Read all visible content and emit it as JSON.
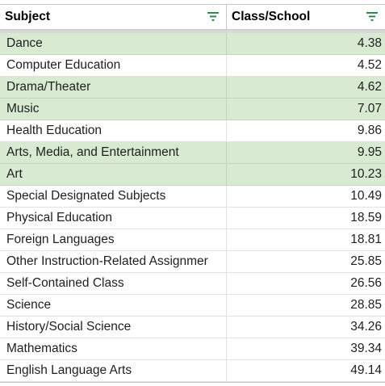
{
  "table": {
    "headers": [
      "Subject",
      "Class/School"
    ],
    "rows": [
      {
        "subject": "Dance",
        "value": "4.38",
        "highlight": true
      },
      {
        "subject": "Computer Education",
        "value": "4.52",
        "highlight": false
      },
      {
        "subject": "Drama/Theater",
        "value": "4.62",
        "highlight": true
      },
      {
        "subject": "Music",
        "value": "7.07",
        "highlight": true
      },
      {
        "subject": "Health Education",
        "value": "9.86",
        "highlight": false
      },
      {
        "subject": "Arts, Media, and Entertainment",
        "value": "9.95",
        "highlight": true
      },
      {
        "subject": "Art",
        "value": "10.23",
        "highlight": true
      },
      {
        "subject": "Special Designated Subjects",
        "value": "10.49",
        "highlight": false
      },
      {
        "subject": "Physical Education",
        "value": "18.59",
        "highlight": false
      },
      {
        "subject": "Foreign Languages",
        "value": "18.81",
        "highlight": false
      },
      {
        "subject": "Other Instruction-Related Assignmer",
        "value": "25.85",
        "highlight": false
      },
      {
        "subject": "Self-Contained Class",
        "value": "26.56",
        "highlight": false
      },
      {
        "subject": "Science",
        "value": "28.85",
        "highlight": false
      },
      {
        "subject": "History/Social Science",
        "value": "34.26",
        "highlight": false
      },
      {
        "subject": "Mathematics",
        "value": "39.34",
        "highlight": false
      },
      {
        "subject": "English Language Arts",
        "value": "49.14",
        "highlight": false
      }
    ]
  },
  "icons": {
    "filter": "filter-icon"
  },
  "colors": {
    "highlight": "#d9ead3",
    "filter_icon": "#188038",
    "gridline": "#e2e2e2"
  }
}
